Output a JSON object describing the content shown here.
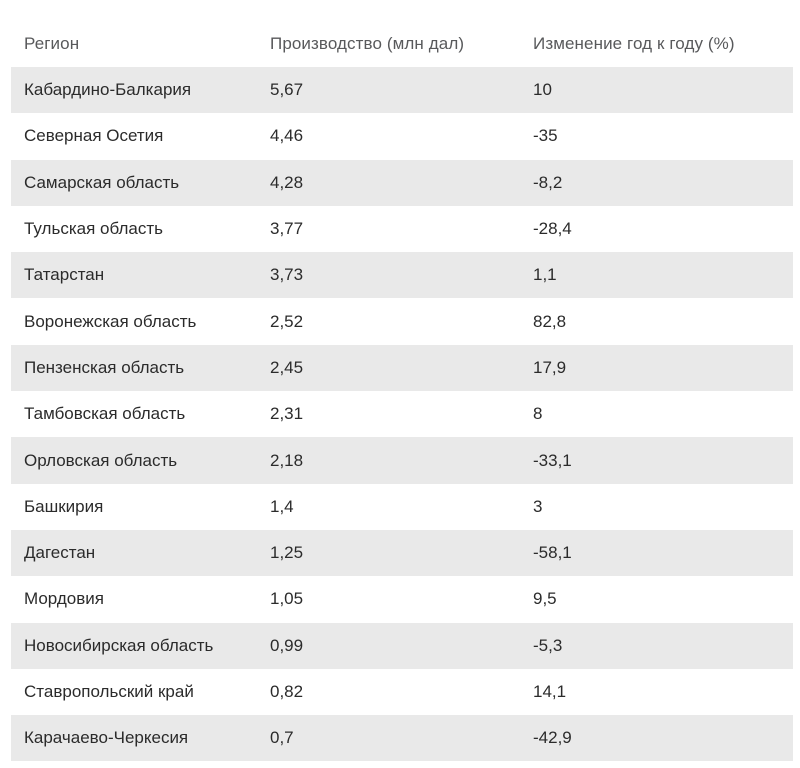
{
  "colors": {
    "background": "#ffffff",
    "row_stripe": "#e9e9e9",
    "header_text": "#58595b",
    "body_text": "#2b2b2b"
  },
  "chart_data": {
    "type": "table",
    "columns": [
      "Регион",
      "Производство (млн дал)",
      "Изменение год к году (%)"
    ],
    "rows": [
      {
        "region": "Кабардино-Балкария",
        "production": "5,67",
        "change": "10"
      },
      {
        "region": "Северная Осетия",
        "production": "4,46",
        "change": "-35"
      },
      {
        "region": "Самарская область",
        "production": "4,28",
        "change": "-8,2"
      },
      {
        "region": "Тульская область",
        "production": "3,77",
        "change": "-28,4"
      },
      {
        "region": "Татарстан",
        "production": "3,73",
        "change": "1,1"
      },
      {
        "region": "Воронежская область",
        "production": "2,52",
        "change": "82,8"
      },
      {
        "region": "Пензенская область",
        "production": "2,45",
        "change": "17,9"
      },
      {
        "region": "Тамбовская область",
        "production": "2,31",
        "change": "8"
      },
      {
        "region": "Орловская область",
        "production": "2,18",
        "change": "-33,1"
      },
      {
        "region": "Башкирия",
        "production": "1,4",
        "change": "3"
      },
      {
        "region": "Дагестан",
        "production": "1,25",
        "change": "-58,1"
      },
      {
        "region": "Мордовия",
        "production": "1,05",
        "change": "9,5"
      },
      {
        "region": "Новосибирская область",
        "production": "0,99",
        "change": "-5,3"
      },
      {
        "region": "Ставропольский край",
        "production": "0,82",
        "change": "14,1"
      },
      {
        "region": "Карачаево-Черкесия",
        "production": "0,7",
        "change": "-42,9"
      }
    ]
  }
}
